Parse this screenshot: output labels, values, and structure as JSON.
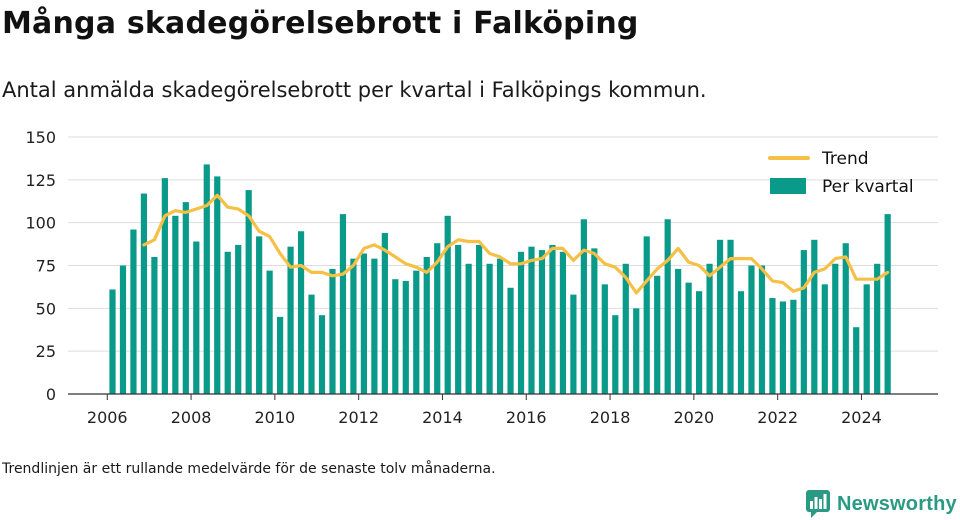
{
  "header": {
    "title": "Många skadegörelsebrott i Falköping",
    "subtitle": "Antal anmälda skadegörelsebrott per kvartal i Falköpings kommun."
  },
  "footer": {
    "note": "Trendlinjen är ett rullande medelvärde för de senaste tolv månaderna.",
    "brand": "Newsworthy"
  },
  "colors": {
    "bars": "#0a9a8a",
    "trend": "#f6c046",
    "grid": "#dddddd",
    "axis": "#333333",
    "brand": "#2a9a85"
  },
  "chart_data": {
    "type": "bar",
    "title": "Många skadegörelsebrott i Falköping",
    "ylim": [
      0,
      150
    ],
    "yticks": [
      0,
      25,
      50,
      75,
      100,
      125,
      150
    ],
    "xticks": [
      "2006",
      "2008",
      "2010",
      "2012",
      "2014",
      "2016",
      "2018",
      "2020",
      "2022",
      "2024"
    ],
    "grid": true,
    "legend_position": "top-right",
    "legend": [
      "Trend",
      "Per kvartal"
    ],
    "categories": [
      "2006 Q1",
      "2006 Q2",
      "2006 Q3",
      "2006 Q4",
      "2007 Q1",
      "2007 Q2",
      "2007 Q3",
      "2007 Q4",
      "2008 Q1",
      "2008 Q2",
      "2008 Q3",
      "2008 Q4",
      "2009 Q1",
      "2009 Q2",
      "2009 Q3",
      "2009 Q4",
      "2010 Q1",
      "2010 Q2",
      "2010 Q3",
      "2010 Q4",
      "2011 Q1",
      "2011 Q2",
      "2011 Q3",
      "2011 Q4",
      "2012 Q1",
      "2012 Q2",
      "2012 Q3",
      "2012 Q4",
      "2013 Q1",
      "2013 Q2",
      "2013 Q3",
      "2013 Q4",
      "2014 Q1",
      "2014 Q2",
      "2014 Q3",
      "2014 Q4",
      "2015 Q1",
      "2015 Q2",
      "2015 Q3",
      "2015 Q4",
      "2016 Q1",
      "2016 Q2",
      "2016 Q3",
      "2016 Q4",
      "2017 Q1",
      "2017 Q2",
      "2017 Q3",
      "2017 Q4",
      "2018 Q1",
      "2018 Q2",
      "2018 Q3",
      "2018 Q4",
      "2019 Q1",
      "2019 Q2",
      "2019 Q3",
      "2019 Q4",
      "2020 Q1",
      "2020 Q2",
      "2020 Q3",
      "2020 Q4",
      "2021 Q1",
      "2021 Q2",
      "2021 Q3",
      "2021 Q4",
      "2022 Q1",
      "2022 Q2",
      "2022 Q3",
      "2022 Q4",
      "2023 Q1",
      "2023 Q2",
      "2023 Q3",
      "2023 Q4",
      "2024 Q1",
      "2024 Q2",
      "2024 Q3"
    ],
    "series": [
      {
        "name": "Per kvartal",
        "kind": "bar",
        "values": [
          61,
          75,
          96,
          117,
          80,
          126,
          104,
          112,
          89,
          134,
          127,
          83,
          87,
          119,
          92,
          72,
          45,
          86,
          95,
          58,
          46,
          73,
          105,
          79,
          82,
          79,
          94,
          67,
          66,
          72,
          80,
          88,
          104,
          87,
          76,
          87,
          76,
          79,
          62,
          83,
          86,
          84,
          87,
          83,
          58,
          102,
          85,
          64,
          46,
          76,
          50,
          92,
          69,
          102,
          73,
          65,
          60,
          76,
          90,
          90,
          60,
          75,
          75,
          56,
          54,
          55,
          84,
          90,
          64,
          76,
          88,
          39,
          64,
          76,
          105
        ]
      },
      {
        "name": "Trend",
        "kind": "line",
        "values": [
          null,
          null,
          null,
          87,
          90,
          104,
          107,
          106,
          108,
          110,
          116,
          109,
          108,
          104,
          95,
          92,
          82,
          74,
          75,
          71,
          71,
          69,
          70,
          75,
          85,
          87,
          84,
          80,
          76,
          74,
          71,
          77,
          86,
          90,
          89,
          89,
          82,
          80,
          76,
          76,
          78,
          79,
          85,
          85,
          78,
          84,
          82,
          76,
          74,
          68,
          59,
          66,
          73,
          78,
          85,
          77,
          75,
          69,
          74,
          79,
          79,
          79,
          73,
          66,
          65,
          60,
          62,
          71,
          73,
          79,
          80,
          67,
          67,
          67,
          71
        ]
      }
    ]
  }
}
